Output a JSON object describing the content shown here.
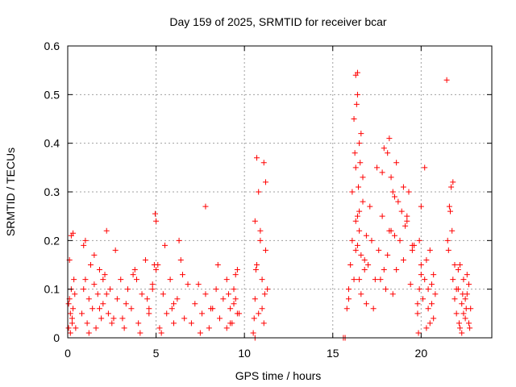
{
  "chart_data": {
    "type": "scatter",
    "title": "Day 159 of 2025, SRMTID for receiver bcar",
    "xlabel": "GPS time / hours",
    "ylabel": "SRMTID / TECUs",
    "xlim": [
      0,
      24
    ],
    "ylim": [
      0,
      0.6
    ],
    "grid": true,
    "marker": "+",
    "color": "#ff0000",
    "x_ticks": [
      0,
      5,
      10,
      15,
      20
    ],
    "x_tick_labels": [
      "0",
      "5",
      "10",
      "15",
      "20"
    ],
    "y_ticks": [
      0,
      0.1,
      0.2,
      0.3,
      0.4,
      0.5,
      0.6
    ],
    "y_tick_labels": [
      "0",
      "0.1",
      "0.2",
      "0.3",
      "0.4",
      "0.5",
      "0.6"
    ],
    "series": [
      {
        "name": "SRMTID",
        "x": [
          0.05,
          0.1,
          0.15,
          0.2,
          0.25,
          0.3,
          0.35,
          0.1,
          0.2,
          0.3,
          0.15,
          0.25,
          0.05,
          0.4,
          0.45,
          0.8,
          0.9,
          1.0,
          1.1,
          1.2,
          1.3,
          1.4,
          1.5,
          1.6,
          1.7,
          1.8,
          1.9,
          2.0,
          2.1,
          2.2,
          2.3,
          2.4,
          2.5,
          1.0,
          1.5,
          2.0,
          2.2,
          1.2,
          1.8,
          0.9,
          2.6,
          2.8,
          3.0,
          3.2,
          3.4,
          3.6,
          3.8,
          4.0,
          4.2,
          4.4,
          4.6,
          4.8,
          3.3,
          3.7,
          4.1,
          4.5,
          4.9,
          2.7,
          3.1,
          3.9,
          4.6,
          4.8,
          5.0,
          5.2,
          5.4,
          5.6,
          5.8,
          6.0,
          6.2,
          6.4,
          6.6,
          6.8,
          5.0,
          5.5,
          6.0,
          6.5,
          5.3,
          5.9,
          6.3,
          4.95,
          5.1,
          7.0,
          7.2,
          7.4,
          7.6,
          7.8,
          8.0,
          8.2,
          8.4,
          8.6,
          8.8,
          9.0,
          9.2,
          9.4,
          9.6,
          7.8,
          8.5,
          9.1,
          9.5,
          7.5,
          8.1,
          9.0,
          9.2,
          9.4,
          9.6,
          9.7,
          9.5,
          9.3,
          10.5,
          10.6,
          10.7,
          10.8,
          10.9,
          11.0,
          11.1,
          11.2,
          11.3,
          10.6,
          10.8,
          11.0,
          11.2,
          10.7,
          11.1,
          10.55,
          10.65,
          10.9,
          11.15,
          10.6,
          15.6,
          15.7,
          15.8,
          15.9,
          16.0,
          16.1,
          16.2,
          16.3,
          16.4,
          16.5,
          16.6,
          16.7,
          16.8,
          16.9,
          15.9,
          16.1,
          16.3,
          16.5,
          16.7,
          16.2,
          16.4,
          16.6,
          16.3,
          16.4,
          16.35,
          16.25,
          16.45,
          16.5,
          16.55,
          16.3,
          16.4,
          16.5,
          16.6,
          16.8,
          16.9,
          17.0,
          17.2,
          17.4,
          17.6,
          17.8,
          18.0,
          18.2,
          18.4,
          18.6,
          18.8,
          19.0,
          19.2,
          19.4,
          19.6,
          19.8,
          20.0,
          17.1,
          17.5,
          17.9,
          18.3,
          18.7,
          19.1,
          19.5,
          17.3,
          17.7,
          18.1,
          18.5,
          18.9,
          19.3,
          17.8,
          18.2,
          18.6,
          19.0,
          18.4,
          17.9,
          18.1,
          18.3,
          18.5,
          19.2,
          19.5,
          19.8,
          19.9,
          20.0,
          20.1,
          20.2,
          20.3,
          20.4,
          20.5,
          20.6,
          20.7,
          20.8,
          19.9,
          20.2,
          20.5,
          20.7,
          20.0,
          20.3,
          20.6,
          19.85,
          20.4,
          21.5,
          21.6,
          21.7,
          21.8,
          21.9,
          22.0,
          21.45,
          21.55,
          21.65,
          21.75,
          21.8,
          21.9,
          22.0,
          22.1,
          22.2,
          22.3,
          22.4,
          22.5,
          22.6,
          22.7,
          22.8,
          22.1,
          22.3,
          22.5,
          22.7,
          22.2,
          22.4,
          22.6,
          22.15,
          22.35,
          22.55,
          22.75
        ],
        "y": [
          0.02,
          0.08,
          0.05,
          0.1,
          0.03,
          0.06,
          0.12,
          0.16,
          0.21,
          0.215,
          0.01,
          0.04,
          0.07,
          0.09,
          0.02,
          0.05,
          0.1,
          0.12,
          0.03,
          0.08,
          0.15,
          0.06,
          0.11,
          0.02,
          0.09,
          0.14,
          0.04,
          0.07,
          0.13,
          0.22,
          0.05,
          0.1,
          0.03,
          0.2,
          0.17,
          0.12,
          0.09,
          0.01,
          0.06,
          0.19,
          0.04,
          0.08,
          0.12,
          0.02,
          0.1,
          0.06,
          0.14,
          0.03,
          0.09,
          0.16,
          0.05,
          0.11,
          0.07,
          0.13,
          0.01,
          0.08,
          0.15,
          0.18,
          0.04,
          0.12,
          0.06,
          0.1,
          0.14,
          0.02,
          0.09,
          0.05,
          0.12,
          0.03,
          0.08,
          0.16,
          0.04,
          0.11,
          0.24,
          0.19,
          0.07,
          0.13,
          0.01,
          0.06,
          0.2,
          0.255,
          0.15,
          0.03,
          0.07,
          0.11,
          0.05,
          0.09,
          0.02,
          0.06,
          0.1,
          0.04,
          0.08,
          0.12,
          0.03,
          0.07,
          0.05,
          0.27,
          0.15,
          0.09,
          0.13,
          0.01,
          0.06,
          0.02,
          0.06,
          0.1,
          0.14,
          0.05,
          0.08,
          0.03,
          0.01,
          0.08,
          0.15,
          0.05,
          0.2,
          0.12,
          0.03,
          0.18,
          0.1,
          0.24,
          0.3,
          0.06,
          0.32,
          0.37,
          0.36,
          0.04,
          0.14,
          0.22,
          0.09,
          0.0,
          0.0,
          0.0,
          0.06,
          0.1,
          0.15,
          0.2,
          0.12,
          0.18,
          0.25,
          0.22,
          0.17,
          0.28,
          0.14,
          0.21,
          0.08,
          0.3,
          0.35,
          0.4,
          0.33,
          0.45,
          0.5,
          0.42,
          0.54,
          0.545,
          0.48,
          0.38,
          0.31,
          0.26,
          0.36,
          0.24,
          0.19,
          0.12,
          0.09,
          0.16,
          0.07,
          0.15,
          0.2,
          0.12,
          0.18,
          0.25,
          0.1,
          0.22,
          0.3,
          0.14,
          0.2,
          0.16,
          0.24,
          0.11,
          0.19,
          0.07,
          0.13,
          0.27,
          0.35,
          0.39,
          0.33,
          0.28,
          0.23,
          0.18,
          0.06,
          0.12,
          0.17,
          0.21,
          0.26,
          0.3,
          0.34,
          0.41,
          0.36,
          0.31,
          0.09,
          0.14,
          0.38,
          0.22,
          0.29,
          0.25,
          0.19,
          0.05,
          0.1,
          0.15,
          0.08,
          0.12,
          0.02,
          0.06,
          0.18,
          0.11,
          0.04,
          0.09,
          0.2,
          0.35,
          0.03,
          0.13,
          0.27,
          0.16,
          0.07,
          0.01,
          0.1,
          0.2,
          0.27,
          0.31,
          0.32,
          0.15,
          0.1,
          0.53,
          0.18,
          0.26,
          0.22,
          0.12,
          0.08,
          0.05,
          0.1,
          0.02,
          0.07,
          0.12,
          0.04,
          0.09,
          0.03,
          0.06,
          0.14,
          0.01,
          0.08,
          0.11,
          0.15,
          0.05,
          0.13,
          0.03,
          0.09,
          0.06,
          0.02
        ]
      }
    ]
  }
}
